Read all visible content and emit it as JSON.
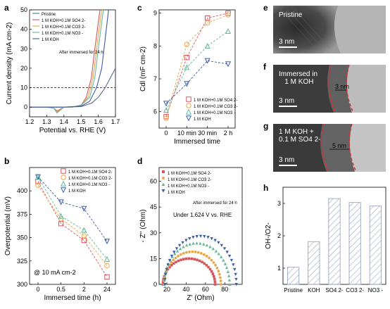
{
  "panel_letters": [
    "a",
    "b",
    "c",
    "d",
    "e",
    "f",
    "g",
    "h"
  ],
  "colors": {
    "pristine": "#5a6b8c",
    "koh_so4": "#d9535b",
    "koh_co3": "#e9a74d",
    "koh_no3": "#66b89a",
    "koh": "#3d5ca8",
    "hatch": "#9aa6c4"
  },
  "chart_data": [
    {
      "panel": "a",
      "type": "line",
      "xlabel": "Potential vs. RHE (V)",
      "ylabel": "Current density (mA cm-2)",
      "xlim": [
        1.2,
        1.7
      ],
      "ylim": [
        -5,
        50
      ],
      "xticks": [
        "1.2",
        "1.3",
        "1.4",
        "1.5",
        "1.6",
        "1.7"
      ],
      "yticks": [
        "0",
        "10",
        "20",
        "30",
        "40",
        "50"
      ],
      "reference_line_y": 10,
      "legend": [
        "Pristine",
        "1 M KOH+0.1M SO4 2-",
        "1 M KOH+0.1M CO3 2-",
        "1 M KOH+0.1M NO3 -",
        "1 M KOH"
      ],
      "legend_note": "After immersed for 24 h",
      "series": [
        {
          "name": "Pristine",
          "x": [
            1.2,
            1.3,
            1.4,
            1.5,
            1.56,
            1.6,
            1.64,
            1.67,
            1.7
          ],
          "y": [
            0,
            0,
            0,
            0.3,
            2,
            5,
            10,
            15,
            20
          ]
        },
        {
          "name": "1 M KOH+0.1M SO4 2-",
          "x": [
            1.2,
            1.3,
            1.34,
            1.36,
            1.4,
            1.45,
            1.5,
            1.53,
            1.56,
            1.58,
            1.61
          ],
          "y": [
            0,
            0,
            -0.5,
            -2,
            0,
            0,
            1,
            5,
            15,
            30,
            50
          ]
        },
        {
          "name": "1 M KOH+0.1M CO3 2-",
          "x": [
            1.2,
            1.3,
            1.34,
            1.36,
            1.4,
            1.45,
            1.5,
            1.54,
            1.57,
            1.59,
            1.62
          ],
          "y": [
            0,
            0,
            -0.5,
            -2.5,
            0,
            0,
            1,
            5,
            15,
            30,
            50
          ]
        },
        {
          "name": "1 M KOH+0.1M NO3 -",
          "x": [
            1.2,
            1.3,
            1.34,
            1.36,
            1.4,
            1.45,
            1.5,
            1.55,
            1.58,
            1.6,
            1.63
          ],
          "y": [
            0,
            0,
            -0.5,
            -3,
            0,
            0,
            1,
            5,
            15,
            30,
            50
          ]
        },
        {
          "name": "1 M KOH",
          "x": [
            1.2,
            1.3,
            1.4,
            1.5,
            1.55,
            1.59,
            1.62,
            1.64,
            1.66
          ],
          "y": [
            0,
            0,
            0,
            0.5,
            3,
            10,
            20,
            35,
            50
          ]
        }
      ]
    },
    {
      "panel": "b",
      "type": "line",
      "xlabel": "Immersed time (h)",
      "ylabel": "Overpotential (mV)",
      "categories": [
        "0",
        "0.5",
        "2",
        "24"
      ],
      "ylim": [
        300,
        425
      ],
      "yticks": [
        "300",
        "325",
        "350",
        "375",
        "400"
      ],
      "annotation": "@ 10 mA cm-2",
      "legend": [
        "1 M KOH+0.1M SO4 2-",
        "1 M KOH+0.1M CO3 2-",
        "1 M KOH+0.1M NO3 -",
        "1 M KOH"
      ],
      "series": [
        {
          "name": "1 M KOH+0.1M SO4 2-",
          "values": [
            410,
            365,
            347,
            308
          ]
        },
        {
          "name": "1 M KOH+0.1M CO3 2-",
          "values": [
            406,
            370,
            352,
            320
          ]
        },
        {
          "name": "1 M KOH+0.1M NO3 -",
          "values": [
            415,
            373,
            358,
            327
          ]
        },
        {
          "name": "1 M KOH",
          "values": [
            415,
            388,
            381,
            346
          ]
        }
      ]
    },
    {
      "panel": "c",
      "type": "line",
      "xlabel": "Immersed time",
      "ylabel": "Cdl (mF cm-2)",
      "categories": [
        "0",
        "10 min",
        "30 min",
        "2 h"
      ],
      "ylim": [
        5.5,
        9.1
      ],
      "yticks": [
        "6",
        "7",
        "8",
        "9"
      ],
      "legend": [
        "1 M KOH+0.1M SO4 2-",
        "1 M KOH+0.1M CO3 2-",
        "1 M KOH+0.1M NO3 -",
        "1 M KOH"
      ],
      "series": [
        {
          "name": "1 M KOH+0.1M SO4 2-",
          "values": [
            5.85,
            7.65,
            8.85,
            9.0
          ]
        },
        {
          "name": "1 M KOH+0.1M CO3 2-",
          "values": [
            5.8,
            8.05,
            8.7,
            8.95
          ]
        },
        {
          "name": "1 M KOH+0.1M NO3 -",
          "values": [
            6.05,
            7.35,
            8.0,
            8.45
          ]
        },
        {
          "name": "1 M KOH",
          "values": [
            6.25,
            6.85,
            7.55,
            7.45
          ]
        }
      ]
    },
    {
      "panel": "d",
      "type": "scatter",
      "xlabel": "Z' (Ohm)",
      "ylabel": "- Z'' (Ohm)",
      "xlim": [
        12,
        98
      ],
      "ylim": [
        0,
        68
      ],
      "xticks": [
        "20",
        "40",
        "60",
        "80"
      ],
      "yticks": [
        "0",
        "15",
        "30",
        "45",
        "60"
      ],
      "annotation": "Under 1.624 V vs. RHE",
      "legend": [
        "1 M KOH+0.1M SO4 2-",
        "1 M KOH+0.1M CO3 2-",
        "1 M KOH+0.1M NO3 -",
        "1 M KOH"
      ],
      "legend_note": "After immersed for 24 h",
      "series": [
        {
          "name": "1 M KOH+0.1M SO4 2-",
          "x_start": 16,
          "x_end": 70,
          "peak": 15
        },
        {
          "name": "1 M KOH+0.1M CO3 2-",
          "x_start": 17,
          "x_end": 76,
          "peak": 19
        },
        {
          "name": "1 M KOH+0.1M NO3 -",
          "x_start": 17,
          "x_end": 85,
          "peak": 24
        },
        {
          "name": "1 M KOH",
          "x_start": 18,
          "x_end": 92,
          "peak": 28
        }
      ]
    },
    {
      "panel": "h",
      "type": "bar",
      "xlabel": "",
      "ylabel": "OH-/O2-",
      "categories": [
        "Pristine",
        "KOH",
        "SO4 2-",
        "CO3 2-",
        "NO3 -"
      ],
      "values": [
        1.03,
        1.82,
        3.15,
        3.03,
        2.92
      ],
      "ylim": [
        0.5,
        3.5
      ],
      "yticks": [
        "1",
        "2",
        "3"
      ]
    }
  ],
  "tem": {
    "e": {
      "label": "Pristine",
      "scale": "3 nm"
    },
    "f": {
      "label": "Immersed in\n   1 M KOH",
      "scale": "3 nm",
      "thickness": "3 nm"
    },
    "g": {
      "label": "1 M KOH +\n0.1 M SO4 2-",
      "scale": "3 nm",
      "thickness": "5 nm"
    }
  }
}
